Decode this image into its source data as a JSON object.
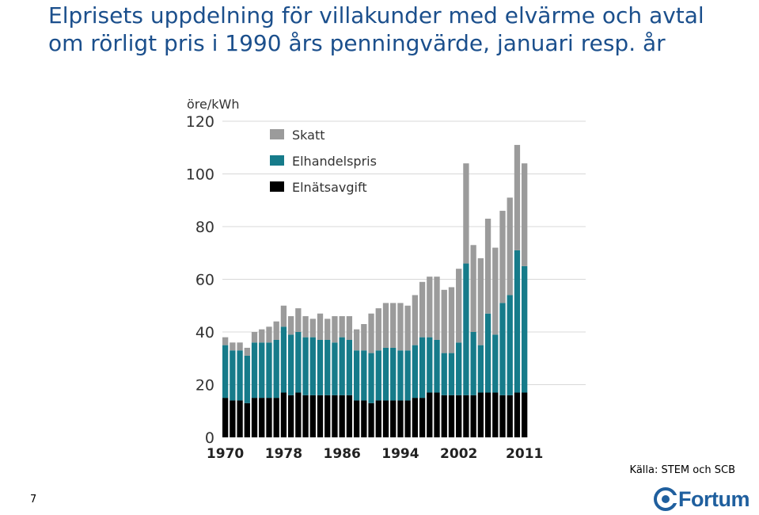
{
  "slide": {
    "title": "Elprisets uppdelning för villakunder med elvärme och avtal om rörligt pris i 1990 års penningvärde, januari resp. år",
    "source": "Källa: STEM och SCB",
    "page_number": "7",
    "logo_text": "Fortum"
  },
  "chart_data": {
    "type": "bar",
    "stacked": true,
    "unit_label": "öre/kWh",
    "ylim": [
      0,
      120
    ],
    "y_ticks": [
      0,
      20,
      40,
      60,
      80,
      100,
      120
    ],
    "x_tick_labels": [
      "1970",
      "1978",
      "1986",
      "1994",
      "2002",
      "2011"
    ],
    "grid": true,
    "legend_position": "top-left",
    "colors": {
      "Skatt": "#9b9b9b",
      "Elhandelspris": "#167b8a",
      "Elnätsavgift": "#000000"
    },
    "categories": [
      "1970",
      "1971",
      "1972",
      "1973",
      "1974",
      "1975",
      "1976",
      "1977",
      "1978",
      "1979",
      "1980",
      "1981",
      "1982",
      "1983",
      "1984",
      "1985",
      "1986",
      "1987",
      "1988",
      "1989",
      "1990",
      "1991",
      "1992",
      "1993",
      "1994",
      "1995",
      "1996",
      "1997",
      "1998",
      "1999",
      "2000",
      "2001",
      "2002",
      "2003",
      "2004",
      "2005",
      "2006",
      "2007",
      "2008",
      "2009",
      "2010",
      "2011"
    ],
    "series": [
      {
        "name": "Elnätsavgift",
        "values": [
          15,
          14,
          14,
          13,
          15,
          15,
          15,
          15,
          17,
          16,
          17,
          16,
          16,
          16,
          16,
          16,
          16,
          16,
          14,
          14,
          13,
          14,
          14,
          14,
          14,
          14,
          15,
          15,
          17,
          17,
          16,
          16,
          16,
          16,
          16,
          17,
          17,
          17,
          16,
          16,
          17,
          17
        ]
      },
      {
        "name": "Elhandelspris",
        "values": [
          20,
          19,
          19,
          18,
          21,
          21,
          21,
          22,
          25,
          23,
          23,
          22,
          22,
          21,
          21,
          20,
          22,
          21,
          19,
          19,
          19,
          19,
          20,
          20,
          19,
          19,
          20,
          23,
          21,
          20,
          16,
          16,
          20,
          50,
          24,
          18,
          30,
          22,
          35,
          38,
          54,
          48
        ]
      },
      {
        "name": "Skatt",
        "values": [
          3,
          3,
          3,
          3,
          4,
          5,
          6,
          7,
          8,
          7,
          9,
          8,
          7,
          10,
          8,
          10,
          8,
          9,
          8,
          10,
          15,
          16,
          17,
          17,
          18,
          17,
          19,
          21,
          23,
          24,
          24,
          25,
          28,
          38,
          33,
          33,
          36,
          33,
          35,
          37,
          40,
          39
        ]
      }
    ]
  }
}
